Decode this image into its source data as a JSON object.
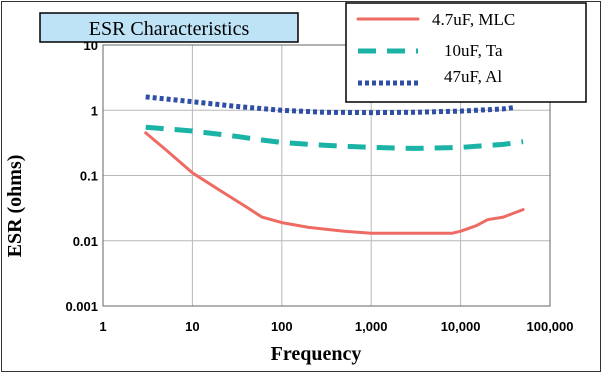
{
  "colors": {
    "mlc": "#ee6b63",
    "ta": "#1bb3a6",
    "al": "#2f4fa6",
    "title_box": "#bfe3f6",
    "grid": "#b8b8b8"
  },
  "chart_data": {
    "type": "line",
    "title": "ESR Characteristics",
    "xlabel": "Frequency",
    "ylabel": "ESR (ohms)",
    "x_scale": "log",
    "y_scale": "log",
    "xlim": [
      1,
      100000
    ],
    "ylim": [
      0.001,
      10
    ],
    "x_ticks": [
      1,
      10,
      100,
      1000,
      10000,
      100000
    ],
    "x_tick_labels": [
      "1",
      "10",
      "100",
      "1,000",
      "10,000",
      "100,000"
    ],
    "y_ticks": [
      0.001,
      0.01,
      0.1,
      1,
      10
    ],
    "y_tick_labels": [
      "0.001",
      "0.01",
      "0.1",
      "1",
      "10"
    ],
    "grid": true,
    "legend_position": "top-right",
    "series": [
      {
        "name": "4.7uF, MLC",
        "style": "solid",
        "color_key": "mlc",
        "x": [
          3,
          5,
          10,
          20,
          40,
          60,
          100,
          200,
          500,
          1000,
          2000,
          5000,
          8000,
          10000,
          15000,
          20000,
          30000,
          50000
        ],
        "y": [
          0.45,
          0.25,
          0.11,
          0.06,
          0.033,
          0.023,
          0.019,
          0.016,
          0.014,
          0.013,
          0.013,
          0.013,
          0.013,
          0.014,
          0.017,
          0.021,
          0.023,
          0.03
        ]
      },
      {
        "name": "10uF, Ta",
        "style": "dashed",
        "color_key": "ta",
        "x": [
          3,
          10,
          30,
          60,
          100,
          300,
          1000,
          3000,
          10000,
          30000,
          50000
        ],
        "y": [
          0.55,
          0.48,
          0.4,
          0.35,
          0.32,
          0.29,
          0.27,
          0.26,
          0.27,
          0.3,
          0.33
        ]
      },
      {
        "name": "47uF, Al",
        "style": "dotted",
        "color_key": "al",
        "x": [
          3,
          10,
          30,
          100,
          300,
          1000,
          3000,
          10000,
          30000,
          40000
        ],
        "y": [
          1.6,
          1.35,
          1.15,
          1.0,
          0.93,
          0.92,
          0.93,
          0.97,
          1.05,
          1.1
        ]
      }
    ]
  }
}
